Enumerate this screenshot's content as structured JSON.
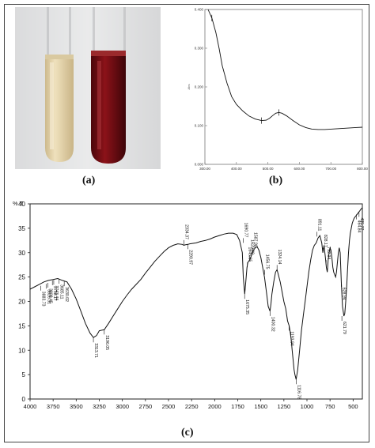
{
  "labels": {
    "a": "(a)",
    "b": "(b)",
    "c": "(c)"
  },
  "colors": {
    "line": "#111111",
    "tube_light": "#e5d2a8",
    "tube_dark": "#7a0e14"
  },
  "photo": {
    "description_icons": [
      "test-tube-light",
      "test-tube-dark"
    ]
  },
  "chart_data": [
    {
      "type": "line",
      "title": "",
      "xlabel": "nm",
      "ylabel": "Abs",
      "xlim": [
        300,
        800
      ],
      "ylim": [
        0,
        0.4
      ],
      "x_ticks": [
        "300.00",
        "400.00",
        "500.00",
        "600.00",
        "700.00",
        "800.00"
      ],
      "y_ticks": [
        "0.000",
        "0.100",
        "0.200",
        "0.300",
        "0.400"
      ],
      "x_tick_values": [
        300,
        400,
        500,
        600,
        700,
        800
      ],
      "y_tick_values": [
        0,
        0.1,
        0.2,
        0.3,
        0.4
      ],
      "series": [
        {
          "x": [
            310,
            322,
            335,
            345,
            355,
            370,
            385,
            400,
            420,
            440,
            460,
            480,
            495,
            505,
            515,
            525,
            535,
            545,
            560,
            580,
            600,
            620,
            640,
            660,
            680,
            700,
            720,
            740,
            760,
            780,
            800
          ],
          "y": [
            0.4,
            0.378,
            0.34,
            0.3,
            0.255,
            0.21,
            0.175,
            0.155,
            0.138,
            0.125,
            0.117,
            0.113,
            0.114,
            0.119,
            0.126,
            0.132,
            0.134,
            0.132,
            0.125,
            0.113,
            0.102,
            0.095,
            0.091,
            0.09,
            0.09,
            0.091,
            0.092,
            0.093,
            0.094,
            0.095,
            0.096
          ]
        }
      ]
    },
    {
      "type": "line",
      "title": "",
      "xlabel": "",
      "ylabel": "% T",
      "xlim": [
        4000,
        400
      ],
      "ylim": [
        0,
        40
      ],
      "x_ticks": [
        "4000",
        "3750",
        "3500",
        "3250",
        "3000",
        "2750",
        "2500",
        "2250",
        "2000",
        "1750",
        "1500",
        "1250",
        "1000",
        "750",
        "500"
      ],
      "y_ticks": [
        "0",
        "5",
        "10",
        "15",
        "20",
        "25",
        "30",
        "35",
        "40"
      ],
      "x_tick_values": [
        4000,
        3750,
        3500,
        3250,
        3000,
        2750,
        2500,
        2250,
        2000,
        1750,
        1500,
        1250,
        1000,
        750,
        500
      ],
      "y_tick_values": [
        0,
        5,
        10,
        15,
        20,
        25,
        30,
        35,
        40
      ],
      "series": [
        {
          "x": [
            4000,
            3950,
            3900,
            3850,
            3800,
            3750,
            3700,
            3650,
            3600,
            3550,
            3500,
            3450,
            3400,
            3350,
            3313,
            3280,
            3250,
            3196,
            3150,
            3100,
            3050,
            3000,
            2950,
            2900,
            2850,
            2800,
            2750,
            2700,
            2650,
            2600,
            2550,
            2500,
            2450,
            2400,
            2350,
            2334,
            2320,
            2290,
            2270,
            2200,
            2150,
            2100,
            2050,
            2000,
            1950,
            1900,
            1850,
            1800,
            1760,
            1730,
            1700,
            1690,
            1675,
            1665,
            1650,
            1640,
            1620,
            1600,
            1580,
            1560,
            1540,
            1520,
            1500,
            1480,
            1460,
            1440,
            1420,
            1400,
            1390,
            1380,
            1360,
            1340,
            1324,
            1310,
            1290,
            1270,
            1250,
            1230,
            1210,
            1193,
            1180,
            1170,
            1160,
            1150,
            1140,
            1130,
            1117,
            1100,
            1080,
            1060,
            1040,
            1020,
            1000,
            980,
            960,
            940,
            920,
            900,
            880,
            860,
            840,
            828,
            815,
            800,
            790,
            780,
            770,
            760,
            750,
            740,
            730,
            720,
            710,
            700,
            690,
            680,
            670,
            660,
            650,
            640,
            628,
            615,
            600,
            590,
            580,
            570,
            560,
            550,
            540,
            530,
            520,
            510,
            500,
            490,
            480,
            470,
            460,
            450,
            440,
            430,
            420,
            410,
            400
          ],
          "y": [
            22.5,
            23.0,
            23.5,
            24.0,
            24.3,
            24.5,
            24.7,
            24.3,
            24.0,
            22.5,
            20.5,
            18.0,
            15.5,
            13.5,
            12.6,
            13.0,
            14.0,
            14.2,
            15.5,
            17.0,
            18.5,
            20.0,
            21.3,
            22.5,
            23.5,
            24.5,
            25.8,
            27.0,
            28.2,
            29.2,
            30.2,
            31.0,
            31.5,
            31.8,
            31.7,
            31.5,
            31.6,
            31.7,
            31.8,
            32.0,
            32.3,
            32.5,
            32.8,
            33.2,
            33.5,
            33.8,
            34.0,
            34.0,
            33.7,
            32.5,
            30.0,
            25.0,
            21.5,
            23.5,
            27.0,
            28.0,
            28.5,
            29.5,
            30.5,
            31.0,
            31.2,
            30.5,
            29.0,
            27.0,
            25.0,
            22.0,
            19.0,
            18.0,
            19.5,
            21.5,
            24.0,
            26.0,
            26.5,
            25.5,
            24.0,
            22.0,
            20.0,
            18.5,
            16.0,
            15.0,
            13.5,
            12.0,
            10.0,
            8.0,
            6.0,
            5.0,
            4.0,
            6.0,
            10.0,
            14.0,
            17.0,
            20.0,
            23.0,
            26.0,
            28.5,
            30.5,
            31.5,
            32.0,
            33.0,
            33.5,
            32.0,
            30.0,
            31.5,
            29.0,
            27.0,
            26.0,
            28.5,
            30.0,
            31.0,
            30.5,
            29.0,
            27.0,
            26.0,
            25.5,
            25.0,
            26.0,
            28.0,
            30.0,
            31.0,
            30.0,
            24.0,
            19.0,
            17.0,
            17.5,
            20.0,
            23.0,
            26.5,
            30.0,
            32.5,
            34.0,
            35.0,
            36.0,
            36.5,
            37.0,
            37.3,
            37.5,
            37.8,
            38.0,
            38.3,
            38.5,
            38.8,
            39.0,
            39.2
          ]
        }
      ],
      "annotations": [
        "3883.73",
        "3826.31",
        "3808.45",
        "3758.17",
        "3743.44",
        "3685.11",
        "3630.02",
        "3313.71",
        "3196.05",
        "2334.37",
        "2290.97",
        "1690.77",
        "1675.35",
        "1645.65",
        "1620.99",
        "1587.96",
        "1456.75",
        "1400.32",
        "1324.14",
        "1193.94",
        "1116.78",
        "891.11",
        "828.17",
        "792.34",
        "628.94",
        "621.79",
        "464.84",
        "435.77"
      ]
    }
  ]
}
